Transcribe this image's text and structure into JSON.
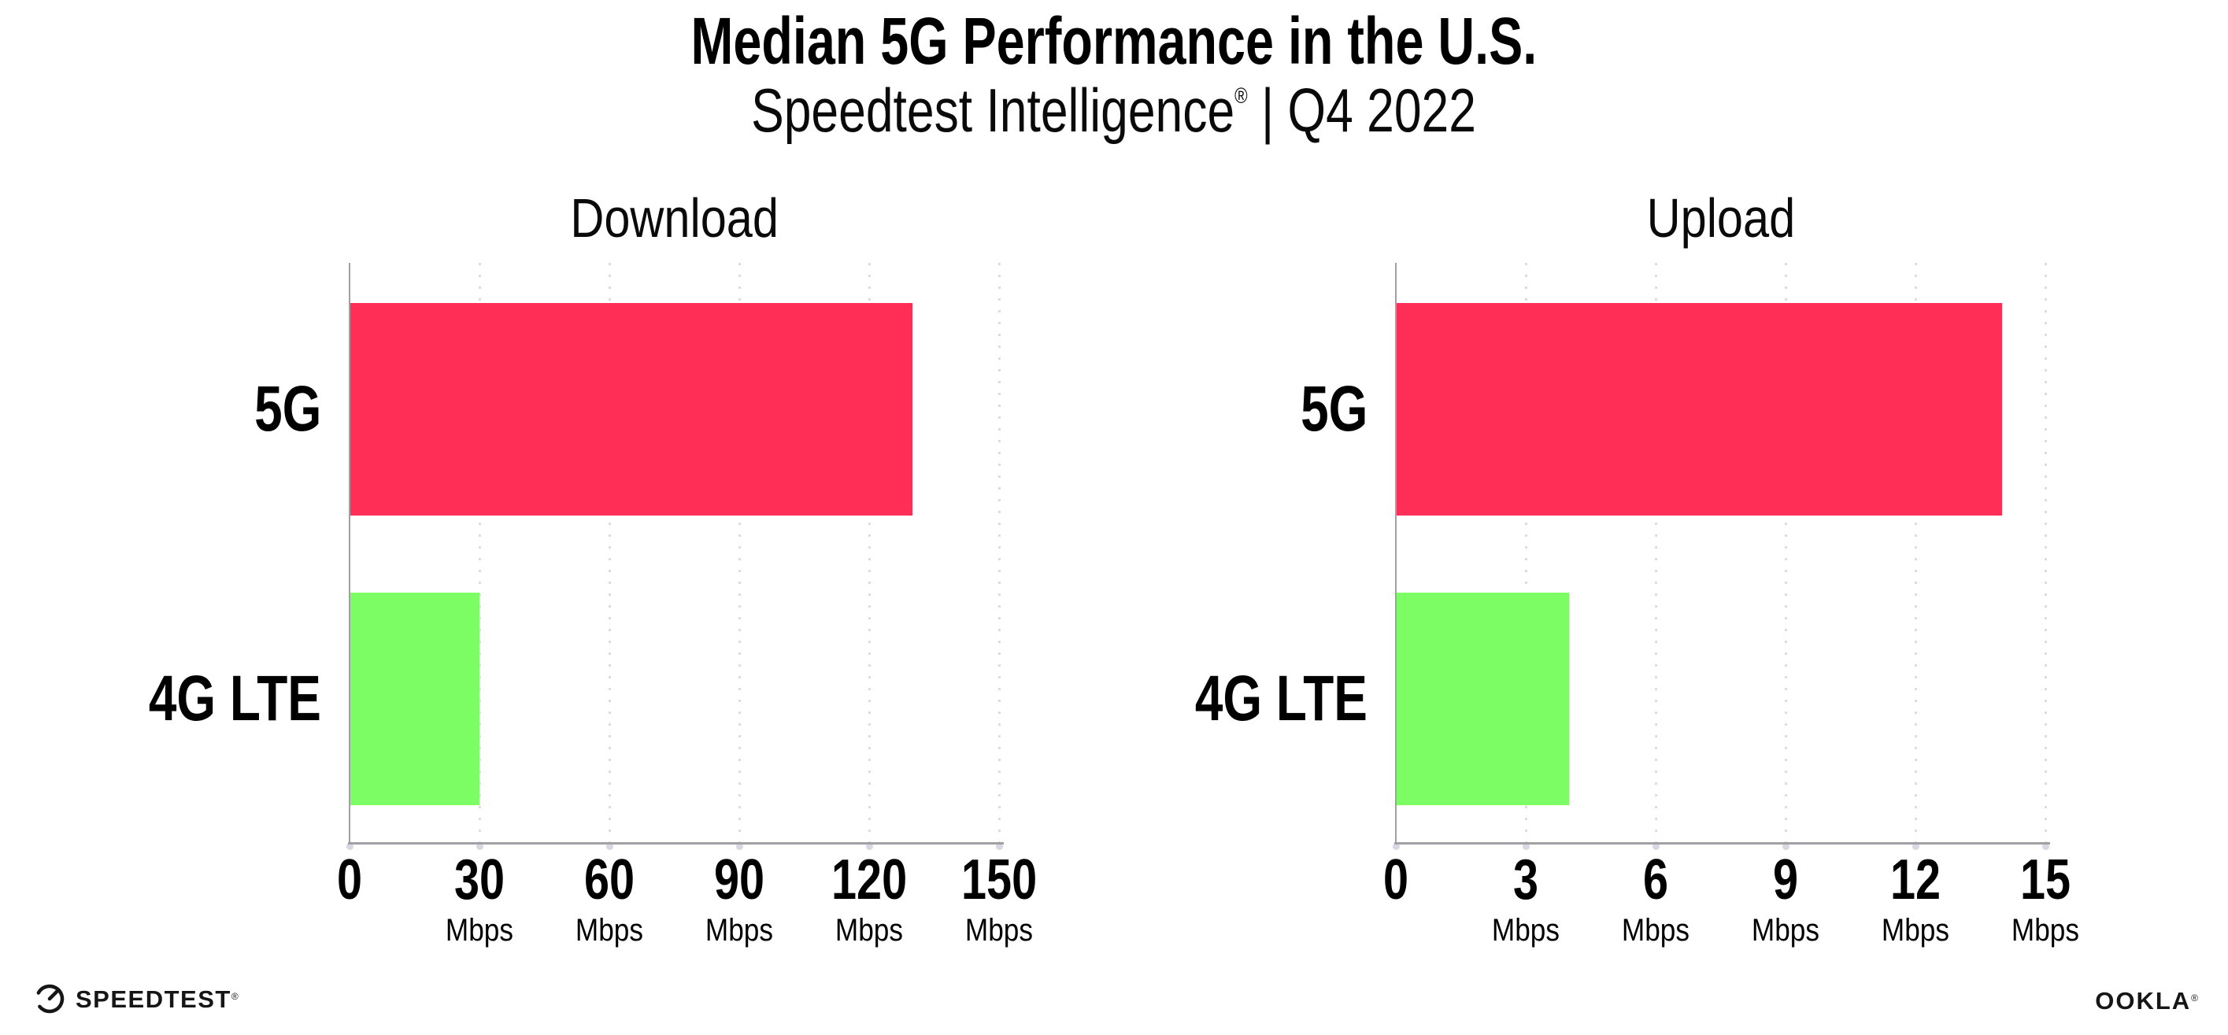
{
  "header": {
    "title": "Median 5G Performance in the U.S.",
    "subtitle": {
      "brand": "Speedtest Intelligence",
      "registered": "®",
      "separator": " | ",
      "period": "Q4 2022"
    }
  },
  "chart_data": [
    {
      "type": "bar",
      "orientation": "horizontal",
      "title": "Download",
      "categories": [
        "5G",
        "4G LTE"
      ],
      "values": [
        130,
        30
      ],
      "unit": "Mbps",
      "xlabel": "",
      "xlim": [
        0,
        150
      ],
      "xticks": [
        0,
        30,
        60,
        90,
        120,
        150
      ],
      "series_colors": [
        "#FF2E56",
        "#7DFD64"
      ],
      "grid": "dotted vertical gridlines at each tick",
      "legend": "none"
    },
    {
      "type": "bar",
      "orientation": "horizontal",
      "title": "Upload",
      "categories": [
        "5G",
        "4G LTE"
      ],
      "values": [
        14,
        4
      ],
      "unit": "Mbps",
      "xlabel": "",
      "xlim": [
        0,
        15
      ],
      "xticks": [
        0,
        3,
        6,
        9,
        12,
        15
      ],
      "series_colors": [
        "#FF2E56",
        "#7DFD64"
      ],
      "grid": "dotted vertical gridlines at each tick",
      "legend": "none"
    }
  ],
  "footer": {
    "speedtest": {
      "label": "SPEEDTEST",
      "mark": "®"
    },
    "ookla": {
      "label": "OOKLA",
      "mark": "®"
    }
  },
  "colors": {
    "bar_5g": "#FF2E56",
    "bar_4g_lte": "#7DFD64",
    "axis_line": "#A0A0A5",
    "gridline_dots": "#DCDCE6",
    "tick_dots": "#D8D8E2",
    "text": "#000000",
    "background": "#FFFFFF"
  }
}
